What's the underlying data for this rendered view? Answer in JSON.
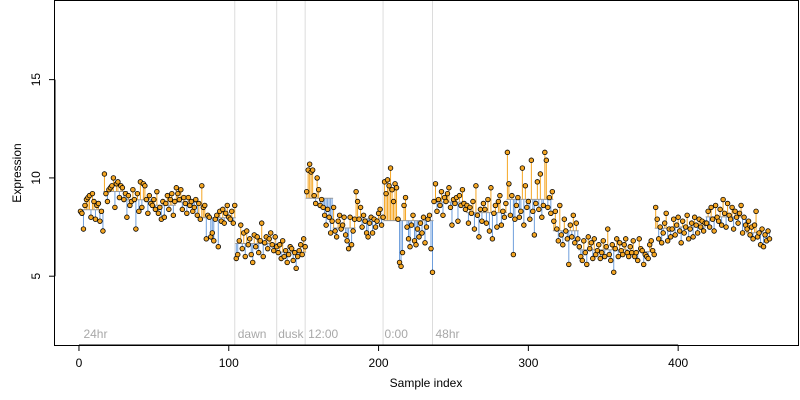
{
  "chart_data": {
    "type": "scatter",
    "xlabel": "Sample index",
    "ylabel": "Expression",
    "xlim": [
      -16,
      480
    ],
    "ylim": [
      1.5,
      19.0
    ],
    "xticks": [
      0,
      100,
      200,
      300,
      400
    ],
    "yticks": [
      5,
      10,
      15
    ],
    "grid": false,
    "baseline_description": "each point joined by a vertical segment to a stepwise group mean",
    "colors": {
      "above_baseline": "#f5a623",
      "below_baseline": "#6f9fdc",
      "point_fill": "#f5a623",
      "point_stroke": "#000000",
      "separator": "#dcdcdc",
      "phase_label": "#a8a8a8"
    },
    "separators": [
      104,
      132,
      151,
      203,
      236
    ],
    "phases": [
      {
        "label": "24hr",
        "x": 3
      },
      {
        "label": "dawn",
        "x": 106
      },
      {
        "label": "dusk",
        "x": 133
      },
      {
        "label": "12:00",
        "x": 153
      },
      {
        "label": "0:00",
        "x": 204
      },
      {
        "label": "48hr",
        "x": 238
      }
    ],
    "segments": [
      {
        "x_start": 1,
        "x_end": 16,
        "values": [
          8.3,
          8.2,
          7.4,
          8.6,
          8.9,
          9.0,
          9.1,
          8.0,
          9.2,
          8.8,
          7.9,
          8.6,
          8.7,
          7.8,
          8.3,
          7.3
        ]
      },
      {
        "x_start": 17,
        "x_end": 32,
        "values": [
          10.2,
          9.2,
          8.8,
          9.4,
          9.5,
          9.6,
          10.0,
          8.5,
          9.7,
          9.8,
          9.0,
          9.6,
          9.5,
          8.9,
          9.2,
          8.0
        ]
      },
      {
        "x_start": 33,
        "x_end": 48,
        "values": [
          9.1,
          8.6,
          8.8,
          9.4,
          8.9,
          7.4,
          9.2,
          8.3,
          9.8,
          8.5,
          9.7,
          9.6,
          8.9,
          8.2,
          9.1,
          8.7
        ]
      },
      {
        "x_start": 49,
        "x_end": 64,
        "values": [
          8.6,
          8.9,
          8.4,
          9.3,
          8.2,
          8.5,
          7.9,
          8.8,
          8.0,
          8.7,
          9.1,
          8.4,
          8.9,
          9.2,
          8.1,
          8.8
        ]
      },
      {
        "x_start": 65,
        "x_end": 79,
        "values": [
          9.5,
          9.2,
          8.9,
          9.4,
          8.4,
          9.0,
          8.7,
          8.2,
          9.0,
          8.6,
          8.8,
          8.3,
          8.5,
          8.9,
          8.1
        ]
      },
      {
        "x_start": 80,
        "x_end": 104,
        "values": [
          8.7,
          7.9,
          9.6,
          8.5,
          8.6,
          6.9,
          8.1,
          8.0,
          7.0,
          7.2,
          6.8,
          7.9,
          8.1,
          6.5,
          8.3,
          7.8,
          8.4,
          7.7,
          8.2,
          8.6,
          8.0,
          7.9,
          8.3,
          7.7,
          8.6
        ]
      },
      {
        "x_start": 105,
        "x_end": 132,
        "values": [
          5.9,
          6.1,
          6.8,
          7.6,
          6.4,
          7.2,
          6.0,
          7.3,
          6.6,
          6.9,
          6.1,
          5.7,
          7.1,
          6.5,
          7.0,
          6.2,
          6.8,
          7.7,
          6.0,
          6.7,
          7.0,
          6.4,
          6.9,
          7.2,
          6.6,
          6.3,
          7.0,
          6.5
        ]
      },
      {
        "x_start": 133,
        "x_end": 151,
        "values": [
          6.2,
          6.6,
          5.9,
          6.8,
          6.0,
          6.3,
          5.7,
          6.1,
          6.5,
          6.4,
          5.8,
          6.2,
          5.4,
          6.0,
          6.3,
          6.6,
          6.1,
          6.9,
          6.5
        ]
      },
      {
        "x_start": 152,
        "x_end": 169,
        "values": [
          9.3,
          10.4,
          10.7,
          10.3,
          10.4,
          9.1,
          8.7,
          10.0,
          9.4,
          8.6,
          8.9,
          8.5,
          8.1,
          7.6,
          8.4,
          8.0,
          7.2,
          7.8
        ]
      },
      {
        "x_start": 170,
        "x_end": 184,
        "values": [
          8.5,
          7.3,
          7.0,
          7.8,
          8.1,
          7.4,
          7.6,
          8.0,
          7.1,
          6.8,
          6.4,
          8.0,
          6.6,
          7.3,
          7.9
        ]
      },
      {
        "x_start": 185,
        "x_end": 203,
        "values": [
          9.3,
          8.8,
          7.9,
          8.5,
          7.5,
          8.1,
          7.8,
          7.2,
          7.0,
          7.7,
          8.0,
          7.2,
          7.9,
          7.5,
          7.8,
          8.2,
          8.4,
          7.6,
          8.0
        ]
      },
      {
        "x_start": 204,
        "x_end": 236,
        "values": [
          9.8,
          9.2,
          9.9,
          9.6,
          10.5,
          9.4,
          8.8,
          9.7,
          9.5,
          7.9,
          5.7,
          5.5,
          6.2,
          8.6,
          9.0,
          7.5,
          6.9,
          6.5,
          7.6,
          8.1,
          6.8,
          6.6,
          7.4,
          7.0,
          7.7,
          7.2,
          8.0,
          6.7,
          7.5,
          7.9,
          8.1,
          6.4,
          5.2
        ]
      },
      {
        "x_start": 237,
        "x_end": 258,
        "values": [
          8.8,
          9.7,
          8.3,
          8.9,
          8.6,
          9.3,
          8.1,
          9.0,
          8.8,
          9.2,
          9.5,
          8.5,
          7.6,
          8.9,
          8.7,
          9.0,
          7.8,
          9.1,
          8.6,
          9.4,
          8.7,
          8.4
        ]
      },
      {
        "x_start": 259,
        "x_end": 285,
        "values": [
          8.6,
          7.7,
          8.5,
          8.2,
          8.8,
          7.4,
          9.6,
          8.1,
          7.0,
          8.4,
          7.8,
          8.7,
          8.4,
          7.7,
          8.9,
          7.3,
          9.5,
          6.9,
          8.2,
          8.6,
          7.5,
          8.8,
          9.1,
          7.6,
          8.3,
          8.0,
          8.7
        ]
      },
      {
        "x_start": 286,
        "x_end": 316,
        "values": [
          11.3,
          9.7,
          8.1,
          9.1,
          6.1,
          7.9,
          8.6,
          9.0,
          8.0,
          8.3,
          10.5,
          7.6,
          9.6,
          8.5,
          8.8,
          7.9,
          10.9,
          8.3,
          7.1,
          8.7,
          9.8,
          8.4,
          10.2,
          8.0,
          8.6,
          11.3,
          10.9,
          8.5,
          9.0,
          8.2,
          9.3
        ]
      },
      {
        "x_start": 317,
        "x_end": 333,
        "values": [
          7.8,
          8.3,
          7.4,
          6.8,
          8.6,
          7.1,
          6.6,
          7.9,
          7.3,
          6.9,
          5.6,
          7.6,
          7.0,
          8.1,
          6.7,
          7.7,
          6.9
        ]
      },
      {
        "x_start": 334,
        "x_end": 366,
        "values": [
          6.5,
          6.0,
          5.8,
          6.8,
          6.2,
          5.6,
          7.0,
          6.4,
          6.7,
          5.9,
          6.9,
          6.1,
          6.3,
          6.6,
          5.9,
          6.2,
          6.8,
          6.0,
          6.5,
          7.4,
          6.1,
          5.8,
          6.6,
          5.2,
          6.4,
          6.9,
          6.0,
          6.7,
          6.3,
          6.1,
          6.6,
          6.9,
          6.2
        ]
      },
      {
        "x_start": 367,
        "x_end": 384,
        "values": [
          6.0,
          6.5,
          6.2,
          6.8,
          6.0,
          6.2,
          5.8,
          6.9,
          6.4,
          6.3,
          5.6,
          6.1,
          6.0,
          5.9,
          6.6,
          6.8,
          6.3,
          6.1
        ]
      },
      {
        "x_start": 385,
        "x_end": 395,
        "values": [
          8.5,
          7.9,
          6.9,
          7.5,
          6.7,
          7.2,
          7.7,
          8.2,
          6.8,
          7.4,
          7.0
        ]
      },
      {
        "x_start": 396,
        "x_end": 418,
        "values": [
          7.4,
          7.9,
          7.1,
          7.6,
          8.0,
          7.3,
          6.7,
          7.8,
          7.2,
          7.5,
          8.1,
          6.9,
          7.4,
          7.7,
          7.0,
          8.0,
          7.6,
          7.2,
          7.9,
          7.5,
          7.8,
          7.3,
          7.7
        ]
      },
      {
        "x_start": 419,
        "x_end": 445,
        "values": [
          7.7,
          8.3,
          7.5,
          8.5,
          7.9,
          7.3,
          8.6,
          8.0,
          7.8,
          8.4,
          7.6,
          8.9,
          8.2,
          7.5,
          8.7,
          8.1,
          7.9,
          8.5,
          7.4,
          8.3,
          8.0,
          7.7,
          8.2,
          8.6,
          7.2,
          8.0,
          7.6
        ]
      },
      {
        "x_start": 446,
        "x_end": 461,
        "values": [
          7.4,
          7.8,
          7.1,
          7.5,
          6.9,
          7.6,
          8.3,
          7.0,
          7.2,
          6.6,
          7.4,
          6.5,
          7.1,
          6.8,
          7.3,
          6.9
        ]
      }
    ]
  }
}
